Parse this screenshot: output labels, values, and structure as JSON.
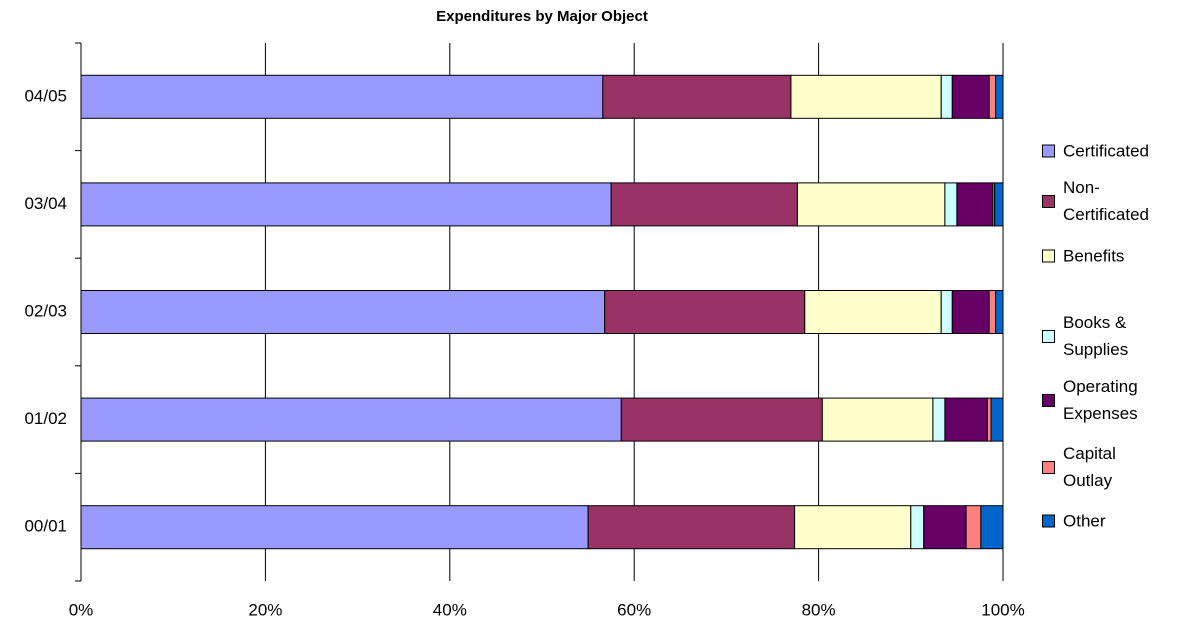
{
  "chart_data": {
    "type": "stacked-bar-horizontal",
    "title": "Expenditures by Major Object",
    "categories": [
      "04/05",
      "03/04",
      "02/03",
      "01/02",
      "00/01"
    ],
    "series": [
      {
        "name": "Certificated",
        "color": "#9999ff",
        "values": [
          56.6,
          57.5,
          56.8,
          58.6,
          55.0
        ]
      },
      {
        "name": "Non-Certificated",
        "color": "#993366",
        "values": [
          20.4,
          20.2,
          21.7,
          21.8,
          22.4
        ]
      },
      {
        "name": "Benefits",
        "color": "#ffffcc",
        "values": [
          16.3,
          16.0,
          14.8,
          12.0,
          12.6
        ]
      },
      {
        "name": "Books & Supplies",
        "color": "#ccffff",
        "values": [
          1.2,
          1.3,
          1.2,
          1.3,
          1.4
        ]
      },
      {
        "name": "Operating Expenses",
        "color": "#660066",
        "values": [
          4.0,
          3.9,
          4.0,
          4.6,
          4.6
        ]
      },
      {
        "name": "Capital Outlay",
        "color": "#ff8080",
        "values": [
          0.7,
          0.2,
          0.7,
          0.4,
          1.6
        ]
      },
      {
        "name": "Other",
        "color": "#0066cc",
        "values": [
          0.8,
          0.9,
          0.8,
          1.3,
          2.4
        ]
      }
    ],
    "xlim": [
      0,
      100
    ],
    "xticks": [
      {
        "value": 0,
        "label": "0%"
      },
      {
        "value": 20,
        "label": "20%"
      },
      {
        "value": 40,
        "label": "40%"
      },
      {
        "value": 60,
        "label": "60%"
      },
      {
        "value": 80,
        "label": "80%"
      },
      {
        "value": 100,
        "label": "100%"
      }
    ],
    "grid": true,
    "legend": "right"
  }
}
